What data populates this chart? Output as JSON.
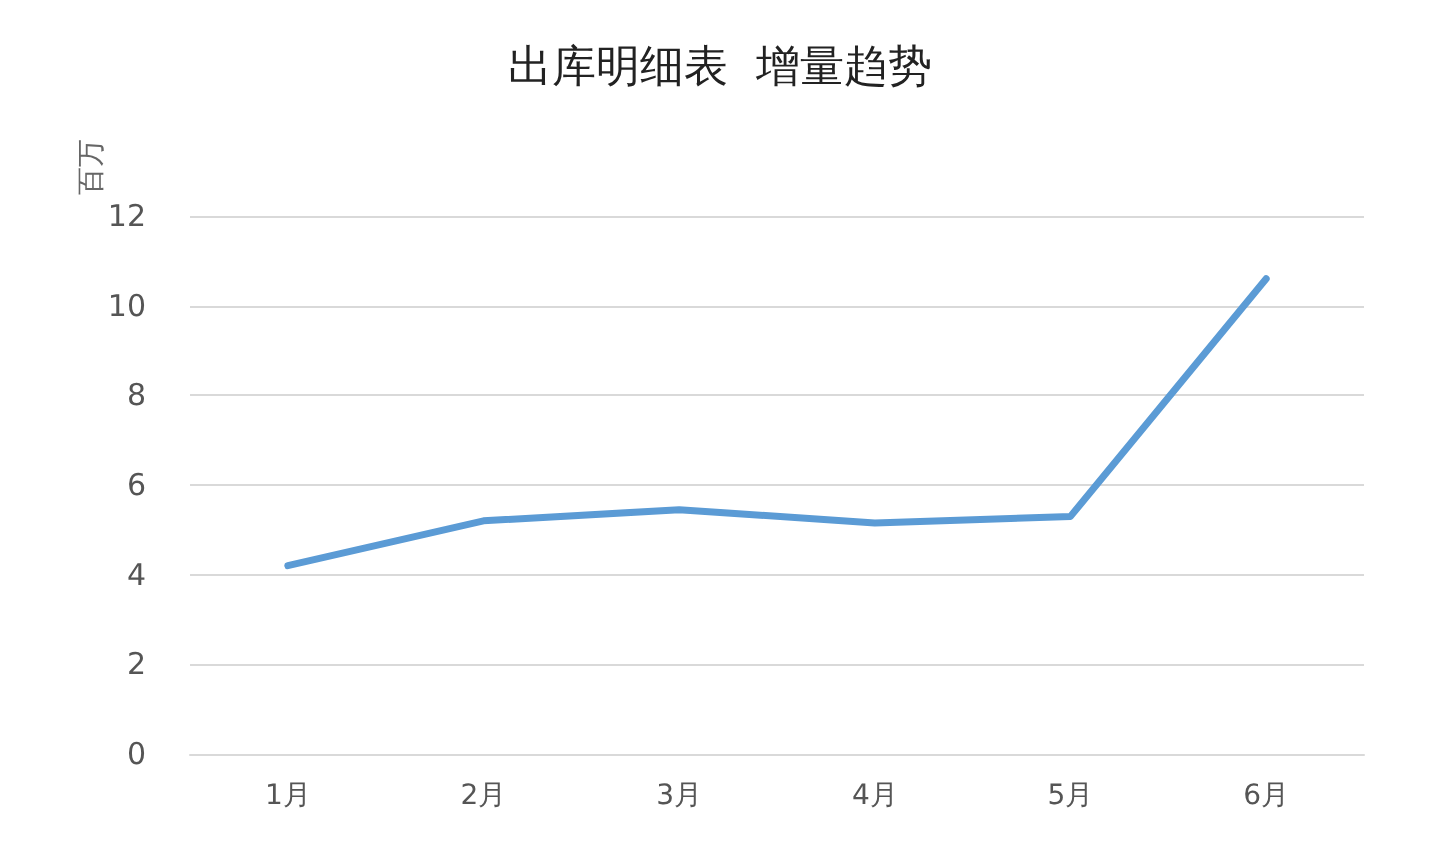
{
  "chart_data": {
    "type": "line",
    "title": "出库明细表  增量趋势",
    "ylabel": "百万",
    "categories": [
      "1月",
      "2月",
      "3月",
      "4月",
      "5月",
      "6月"
    ],
    "values": [
      4.2,
      5.2,
      5.45,
      5.15,
      5.3,
      10.6
    ],
    "color": "#5b9bd5",
    "ylim": [
      0,
      12
    ],
    "yticks": [
      0,
      2,
      4,
      6,
      8,
      10,
      12
    ],
    "grid": "y",
    "marker": "none",
    "line_style": "solid"
  }
}
